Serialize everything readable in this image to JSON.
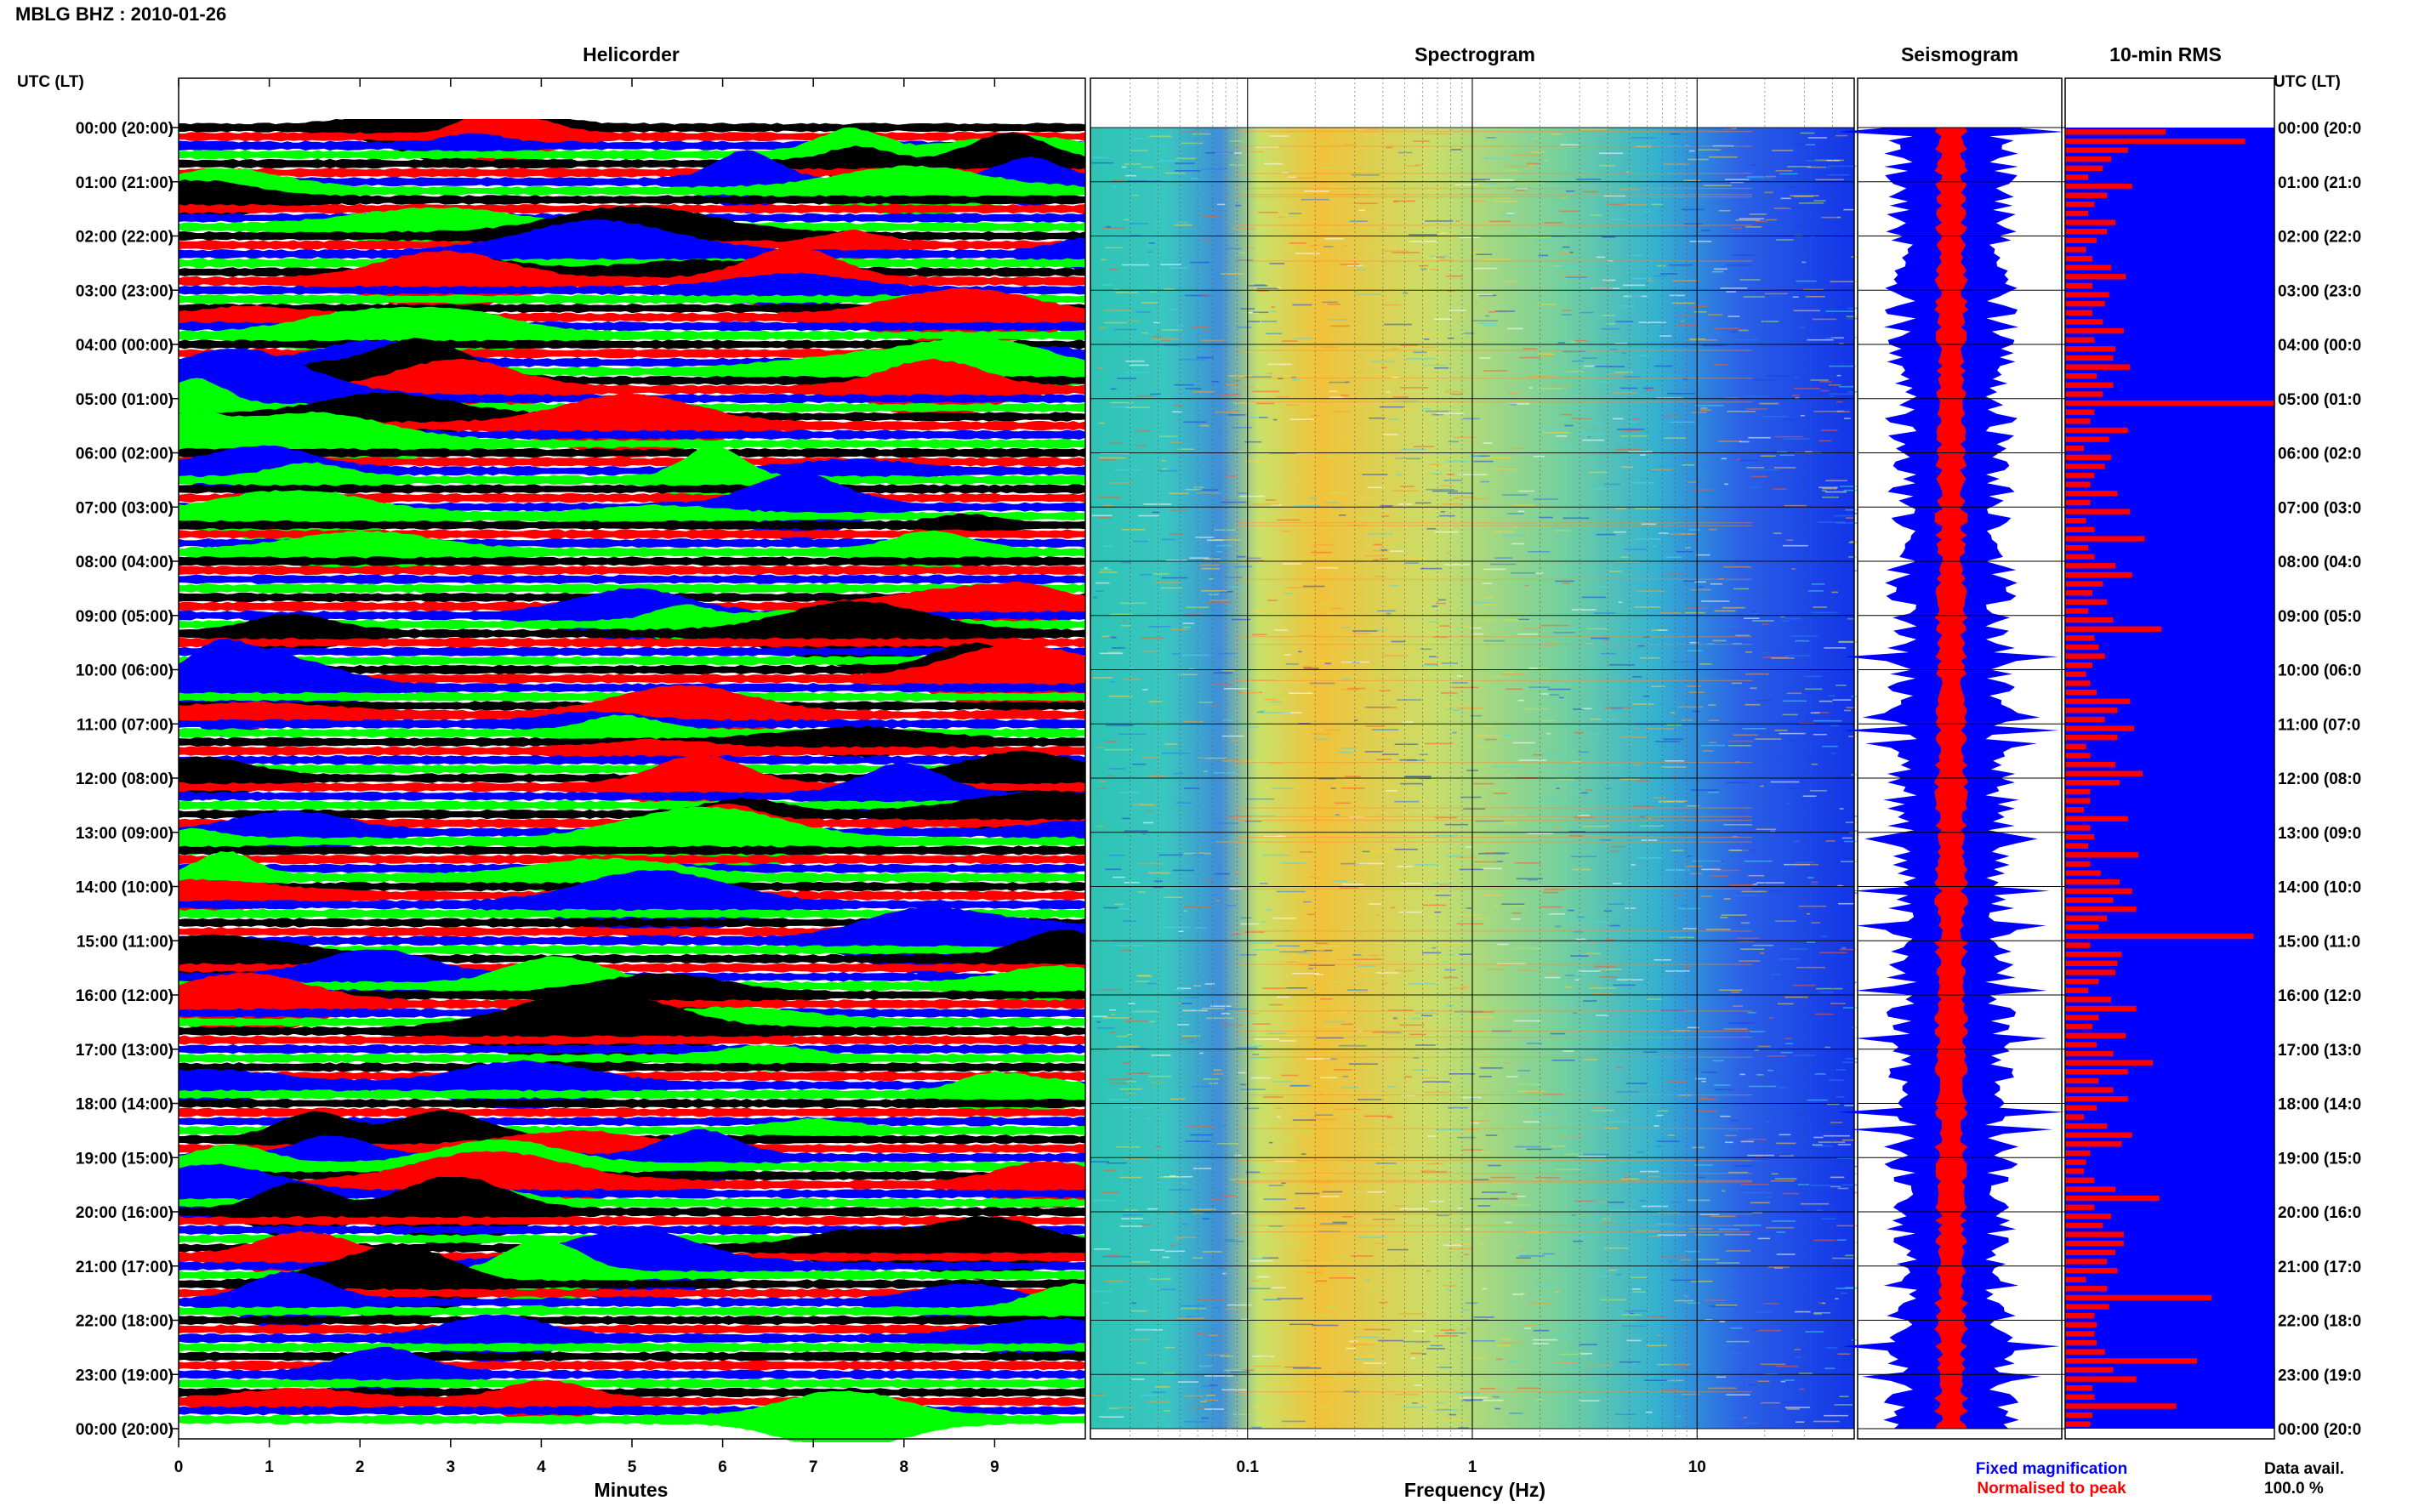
{
  "header": {
    "title": "MBLG BHZ : 2010-01-26"
  },
  "panels": {
    "helicorder": "Helicorder",
    "spectrogram": "Spectrogram",
    "seismogram": "Seismogram",
    "rms": "10-min RMS"
  },
  "time_axis": {
    "left_label": "UTC (LT)",
    "right_label": "UTC (LT)",
    "rows_left": [
      "00:00 (20:00)",
      "01:00 (21:00)",
      "02:00 (22:00)",
      "03:00 (23:00)",
      "04:00 (00:00)",
      "05:00 (01:00)",
      "06:00 (02:00)",
      "07:00 (03:00)",
      "08:00 (04:00)",
      "09:00 (05:00)",
      "10:00 (06:00)",
      "11:00 (07:00)",
      "12:00 (08:00)",
      "13:00 (09:00)",
      "14:00 (10:00)",
      "15:00 (11:00)",
      "16:00 (12:00)",
      "17:00 (13:00)",
      "18:00 (14:00)",
      "19:00 (15:00)",
      "20:00 (16:00)",
      "21:00 (17:00)",
      "22:00 (18:00)",
      "23:00 (19:00)",
      "00:00 (20:00)"
    ],
    "rows_right": [
      "00:00 (20:0",
      "01:00 (21:0",
      "02:00 (22:0",
      "03:00 (23:0",
      "04:00 (00:0",
      "05:00 (01:0",
      "06:00 (02:0",
      "07:00 (03:0",
      "08:00 (04:0",
      "09:00 (05:0",
      "10:00 (06:0",
      "11:00 (07:0",
      "12:00 (08:0",
      "13:00 (09:0",
      "14:00 (10:0",
      "15:00 (11:0",
      "16:00 (12:0",
      "17:00 (13:0",
      "18:00 (14:0",
      "19:00 (15:0",
      "20:00 (16:0",
      "21:00 (17:0",
      "22:00 (18:0",
      "23:00 (19:0",
      "00:00 (20:0"
    ]
  },
  "footer": {
    "minutes_label": "Minutes",
    "frequency_label": "Frequency (Hz)",
    "legend_fixed": "Fixed magnification",
    "legend_norm": "Normalised to peak",
    "data_avail_label": "Data avail.",
    "data_avail_value": "100.0 %"
  },
  "colors": {
    "trace_cycle": [
      "#000000",
      "#ff0000",
      "#0000ff",
      "#00ff00"
    ],
    "fixed": "#0000ff",
    "normalised": "#ff0000",
    "rms_bg": "#0000ff",
    "rms_bar": "#ff0000"
  },
  "chart_data": [
    {
      "type": "line",
      "name": "helicorder",
      "xlabel": "Minutes",
      "xlim": [
        0,
        10
      ],
      "x_ticks": [
        0,
        1,
        2,
        3,
        4,
        5,
        6,
        7,
        8,
        9
      ],
      "traces_per_hour": 6,
      "hours": 24
    },
    {
      "type": "heatmap",
      "name": "spectrogram",
      "xlabel": "Frequency (Hz)",
      "xscale": "log",
      "xlim": [
        0.02,
        50
      ],
      "x_tick_labels": [
        "0.1",
        "1",
        "10"
      ]
    },
    {
      "type": "line",
      "name": "seismogram",
      "legend": [
        "Fixed magnification",
        "Normalised to peak"
      ]
    },
    {
      "type": "bar",
      "name": "10-min RMS",
      "orientation": "horizontal",
      "values": [
        0.48,
        0.86,
        0.3,
        0.22,
        0.18,
        0.11,
        0.32,
        0.2,
        0.14,
        0.11,
        0.24,
        0.2,
        0.15,
        0.1,
        0.13,
        0.22,
        0.29,
        0.13,
        0.21,
        0.19,
        0.13,
        0.18,
        0.28,
        0.14,
        0.24,
        0.23,
        0.31,
        0.15,
        0.23,
        0.18,
        1.0,
        0.14,
        0.12,
        0.3,
        0.21,
        0.09,
        0.22,
        0.19,
        0.14,
        0.12,
        0.25,
        0.12,
        0.31,
        0.1,
        0.14,
        0.38,
        0.11,
        0.14,
        0.24,
        0.32,
        0.18,
        0.13,
        0.2,
        0.11,
        0.23,
        0.46,
        0.14,
        0.16,
        0.19,
        0.13,
        0.1,
        0.12,
        0.15,
        0.31,
        0.25,
        0.19,
        0.33,
        0.25,
        0.1,
        0.12,
        0.24,
        0.37,
        0.26,
        0.12,
        0.12,
        0.09,
        0.3,
        0.12,
        0.14,
        0.11,
        0.35,
        0.12,
        0.17,
        0.26,
        0.32,
        0.23,
        0.34,
        0.2,
        0.16,
        0.9,
        0.12,
        0.27,
        0.25,
        0.24,
        0.16,
        0.11,
        0.22,
        0.34,
        0.16,
        0.13,
        0.29,
        0.15,
        0.23,
        0.42,
        0.3,
        0.16,
        0.23,
        0.3,
        0.15,
        0.09,
        0.2,
        0.32,
        0.27,
        0.12,
        0.1,
        0.09,
        0.14,
        0.24,
        0.45,
        0.14,
        0.22,
        0.18,
        0.28,
        0.28,
        0.24,
        0.2,
        0.25,
        0.1,
        0.2,
        0.7,
        0.21,
        0.14,
        0.15,
        0.14,
        0.15,
        0.19,
        0.63,
        0.23,
        0.34,
        0.13,
        0.14,
        0.53,
        0.13,
        0.12
      ]
    }
  ]
}
